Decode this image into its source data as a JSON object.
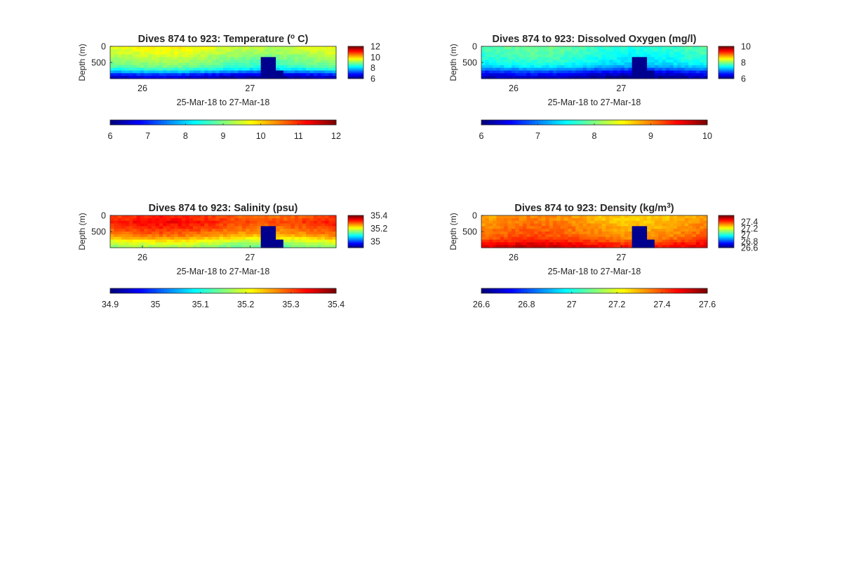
{
  "figure": {
    "panels": [
      {
        "id": "temperature",
        "title": "Dives 874 to 923: Temperature (° C)",
        "title_main": "Dives 874 to 923: Temperature (",
        "title_sup": "o",
        "title_tail": " C)",
        "ylabel": "Depth (m)",
        "xlabel": "25-Mar-18 to 27-Mar-18",
        "ytick_labels": [
          "0",
          "500"
        ],
        "xtick_labels": [
          "26",
          "27"
        ],
        "side_colorbar_ticks": [
          "12",
          "10",
          "8",
          "6"
        ],
        "bottom_colorbar_ticks": [
          "6",
          "7",
          "8",
          "9",
          "10",
          "11",
          "12"
        ]
      },
      {
        "id": "dissolved-oxygen",
        "title": "Dives 874 to 923: Dissolved Oxygen (mg/l)",
        "title_main": "Dives 874 to 923: Dissolved Oxygen (mg/l)",
        "title_sup": "",
        "title_tail": "",
        "ylabel": "Depth (m)",
        "xlabel": "25-Mar-18 to 27-Mar-18",
        "ytick_labels": [
          "0",
          "500"
        ],
        "xtick_labels": [
          "26",
          "27"
        ],
        "side_colorbar_ticks": [
          "10",
          "8",
          "6"
        ],
        "bottom_colorbar_ticks": [
          "6",
          "7",
          "8",
          "9",
          "10"
        ]
      },
      {
        "id": "salinity",
        "title": "Dives 874 to 923: Salinity (psu)",
        "title_main": "Dives 874 to 923: Salinity (psu)",
        "title_sup": "",
        "title_tail": "",
        "ylabel": "Depth (m)",
        "xlabel": "25-Mar-18 to 27-Mar-18",
        "ytick_labels": [
          "0",
          "500"
        ],
        "xtick_labels": [
          "26",
          "27"
        ],
        "side_colorbar_ticks": [
          "35.4",
          "35.2",
          "35"
        ],
        "bottom_colorbar_ticks": [
          "34.9",
          "35",
          "35.1",
          "35.2",
          "35.3",
          "35.4"
        ]
      },
      {
        "id": "density",
        "title": "Dives 874 to 923: Density (kg/m³)",
        "title_main": "Dives 874 to 923: Density (kg/m",
        "title_sup": "3",
        "title_tail": ")",
        "ylabel": "Depth (m)",
        "xlabel": "25-Mar-18 to 27-Mar-18",
        "ytick_labels": [
          "0",
          "500"
        ],
        "xtick_labels": [
          "26",
          "27"
        ],
        "side_colorbar_ticks": [
          "27.4",
          "27.2",
          "27",
          "26.8",
          "26.6"
        ],
        "bottom_colorbar_ticks": [
          "26.6",
          "26.8",
          "27",
          "27.2",
          "27.4",
          "27.6"
        ]
      }
    ]
  },
  "chart_data": [
    {
      "type": "heatmap",
      "title": "Dives 874 to 923: Temperature (o C)",
      "xlabel": "25-Mar-18 to 27-Mar-18",
      "ylabel": "Depth (m)",
      "x_day_range": [
        25.7,
        27.8
      ],
      "ylim": [
        0,
        1000
      ],
      "xticks": [
        26,
        27
      ],
      "yticks": [
        0,
        500
      ],
      "clim": [
        6,
        12
      ],
      "colormap": "jet",
      "colorbar_ticks": [
        6,
        7,
        8,
        9,
        10,
        11,
        12
      ],
      "depth_levels": [
        0,
        200,
        400,
        600,
        700,
        800,
        900,
        1000
      ],
      "profile_values": [
        9.6,
        9.4,
        9.1,
        8.8,
        8.4,
        7.6,
        6.6,
        6.3
      ],
      "notes_visible": "no-data block near day 27.1 to 27.3 below ~300 m"
    },
    {
      "type": "heatmap",
      "title": "Dives 874 to 923: Dissolved Oxygen (mg/l)",
      "xlabel": "25-Mar-18 to 27-Mar-18",
      "ylabel": "Depth (m)",
      "x_day_range": [
        25.7,
        27.8
      ],
      "ylim": [
        0,
        1000
      ],
      "xticks": [
        26,
        27
      ],
      "yticks": [
        0,
        500
      ],
      "clim": [
        6,
        10
      ],
      "colormap": "jet",
      "colorbar_ticks": [
        6,
        7,
        8,
        9,
        10
      ],
      "depth_levels": [
        0,
        200,
        400,
        600,
        700,
        800,
        900,
        1000
      ],
      "profile_values": [
        7.8,
        7.7,
        7.6,
        7.4,
        7.0,
        6.6,
        6.3,
        6.1
      ]
    },
    {
      "type": "heatmap",
      "title": "Dives 874 to 923: Salinity (psu)",
      "xlabel": "25-Mar-18 to 27-Mar-18",
      "ylabel": "Depth (m)",
      "x_day_range": [
        25.7,
        27.8
      ],
      "ylim": [
        0,
        1000
      ],
      "xticks": [
        26,
        27
      ],
      "yticks": [
        0,
        500
      ],
      "clim": [
        34.9,
        35.4
      ],
      "colormap": "jet",
      "colorbar_ticks": [
        34.9,
        35.0,
        35.1,
        35.2,
        35.3,
        35.4
      ],
      "depth_levels": [
        0,
        200,
        400,
        600,
        700,
        800,
        900,
        1000
      ],
      "profile_values": [
        35.3,
        35.32,
        35.3,
        35.27,
        35.24,
        35.2,
        35.17,
        35.15
      ]
    },
    {
      "type": "heatmap",
      "title": "Dives 874 to 923: Density (kg/m3)",
      "xlabel": "25-Mar-18 to 27-Mar-18",
      "ylabel": "Depth (m)",
      "x_day_range": [
        25.7,
        27.8
      ],
      "ylim": [
        0,
        1000
      ],
      "xticks": [
        26,
        27
      ],
      "yticks": [
        0,
        500
      ],
      "clim": [
        26.6,
        27.6
      ],
      "colormap": "jet",
      "colorbar_ticks": [
        26.6,
        26.8,
        27.0,
        27.2,
        27.4,
        27.6
      ],
      "depth_levels": [
        0,
        200,
        400,
        600,
        700,
        800,
        900,
        1000
      ],
      "profile_values": [
        27.3,
        27.32,
        27.34,
        27.36,
        27.38,
        27.42,
        27.47,
        27.5
      ]
    }
  ]
}
